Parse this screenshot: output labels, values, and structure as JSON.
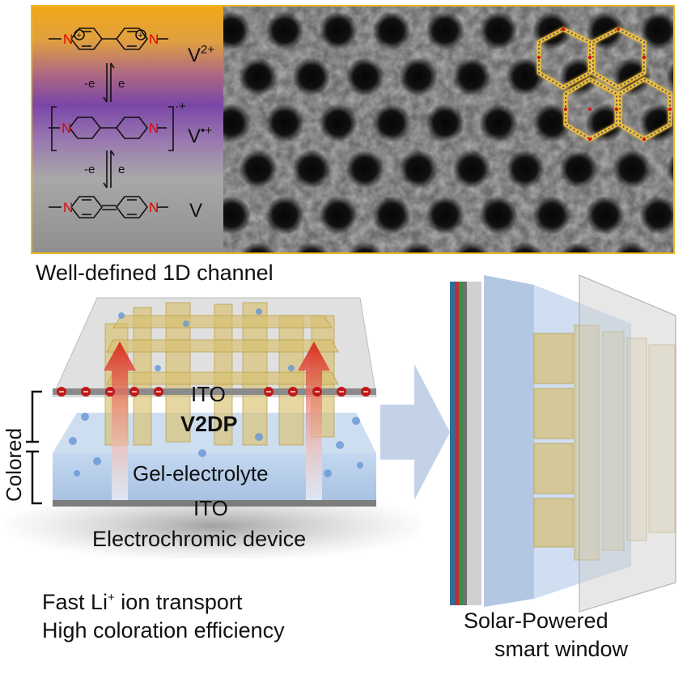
{
  "top_panel": {
    "caption": "Well-defined 1D channel",
    "states": [
      {
        "label": "V",
        "sup": "2+"
      },
      {
        "label": "V",
        "sup": "•+"
      },
      {
        "label": "V",
        "sup": ""
      }
    ],
    "redox_steps": [
      {
        "left": "-e",
        "right": "e"
      },
      {
        "left": "-e",
        "right": "e"
      }
    ],
    "n_atom": "N",
    "radical_charge": "·+",
    "charge_symbol": "+",
    "colors": {
      "frame": "#f2b820",
      "gradient_top": "#f0a818",
      "gradient_mid": "#7a46a8",
      "gradient_bottom": "#8f8f8f",
      "nitrogen": "#e00000"
    }
  },
  "device": {
    "top_electrode": "ITO",
    "active_layer": "V2DP",
    "electrolyte": "Gel-electrolyte",
    "bottom_electrode": "ITO",
    "title": "Electrochromic device",
    "state_label": "Colored",
    "features": [
      "Fast Li",
      " ion transport",
      "High coloration efficiency"
    ],
    "li_sup": "+",
    "electron_symbol": "−"
  },
  "window": {
    "caption_line1": "Solar-Powered",
    "caption_line2": "smart window"
  }
}
